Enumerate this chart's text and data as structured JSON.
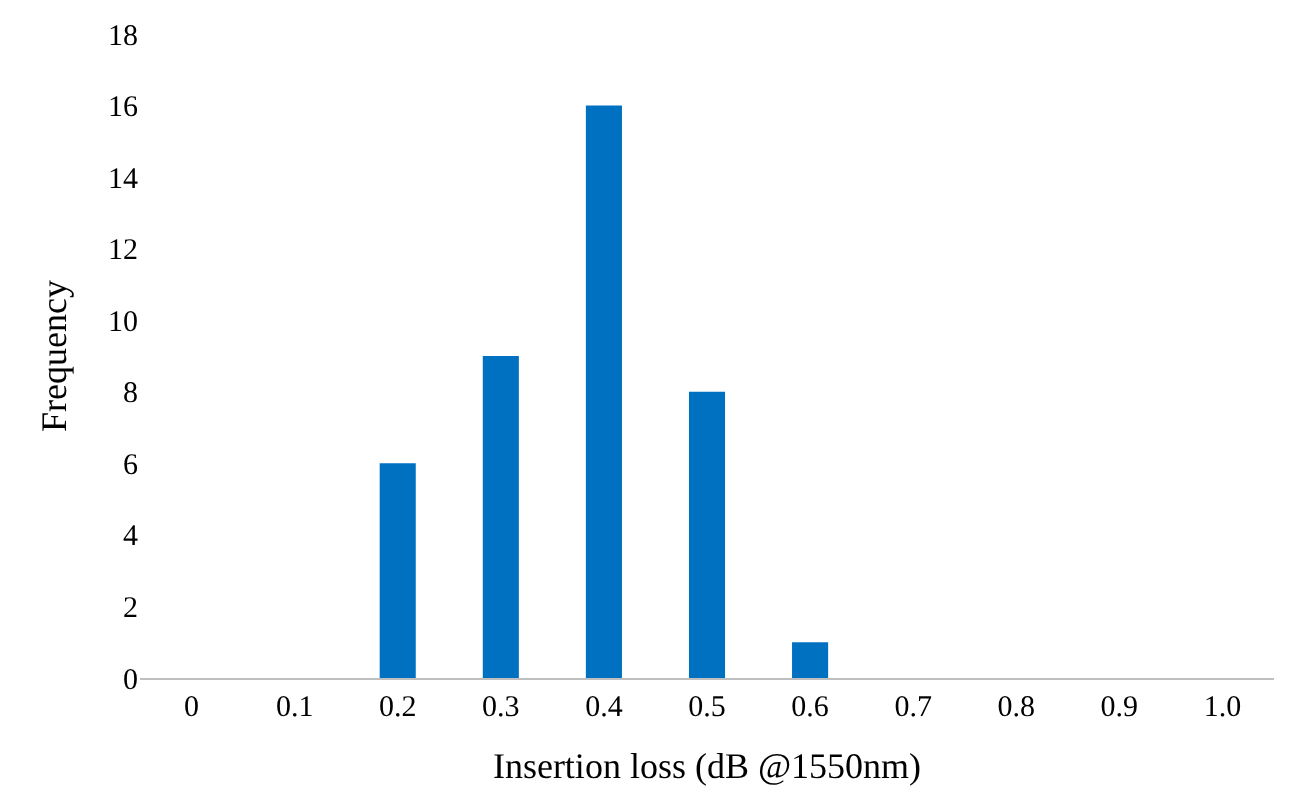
{
  "chart_data": {
    "type": "bar",
    "xlabel": "Insertion loss (dB @1550nm)",
    "ylabel": "Frequency",
    "categories": [
      "0",
      "0.1",
      "0.2",
      "0.3",
      "0.4",
      "0.5",
      "0.6",
      "0.7",
      "0.8",
      "0.9",
      "1.0"
    ],
    "values": [
      0,
      0,
      6,
      9,
      16,
      8,
      1,
      0,
      0,
      0,
      0
    ],
    "color": "#0070c0",
    "ylim": [
      0,
      18
    ],
    "yticks": [
      0,
      2,
      4,
      6,
      8,
      10,
      12,
      14,
      16,
      18
    ]
  }
}
